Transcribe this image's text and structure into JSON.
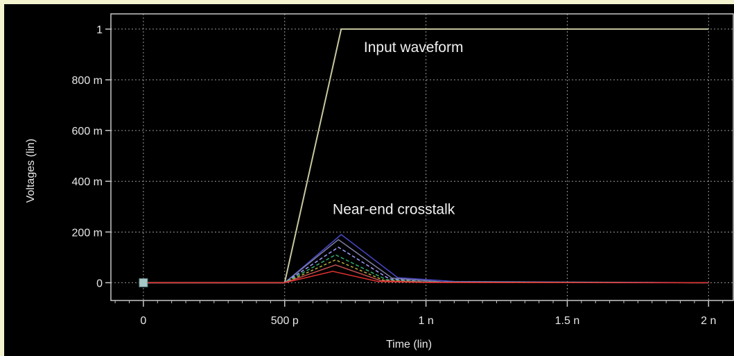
{
  "chart_data": {
    "type": "line",
    "xlabel": "Time (lin)",
    "ylabel": "Voltages (lin)",
    "x_ticks": [
      {
        "value": 0,
        "label": "0"
      },
      {
        "value": 5e-10,
        "label": "500 p"
      },
      {
        "value": 1e-09,
        "label": "1 n"
      },
      {
        "value": 1.5e-09,
        "label": "1.5 n"
      },
      {
        "value": 2e-09,
        "label": "2 n"
      }
    ],
    "y_ticks": [
      {
        "value": 0,
        "label": "0"
      },
      {
        "value": 0.2,
        "label": "200 m"
      },
      {
        "value": 0.4,
        "label": "400 m"
      },
      {
        "value": 0.6,
        "label": "600 m"
      },
      {
        "value": 0.8,
        "label": "800 m"
      },
      {
        "value": 1,
        "label": "1"
      }
    ],
    "xlim": [
      -1.15e-10,
      2.09e-09
    ],
    "ylim": [
      -0.07,
      1.06
    ],
    "grid": true,
    "series": [
      {
        "color": "#c8c8a0",
        "width": 2,
        "x": [
          0,
          5e-10,
          7e-10,
          2e-09
        ],
        "y": [
          0,
          0,
          1,
          1
        ]
      },
      {
        "color": "#4848c8",
        "x": [
          0,
          5e-10,
          7e-10,
          9e-10,
          1.1e-09,
          2e-09
        ],
        "y": [
          0,
          0,
          0.19,
          0.02,
          0.005,
          0
        ]
      },
      {
        "color": "#8080a8",
        "x": [
          0,
          5e-10,
          6.9e-10,
          8.8e-10,
          1.05e-09,
          2e-09
        ],
        "y": [
          0,
          0,
          0.17,
          0.018,
          0.004,
          0
        ]
      },
      {
        "color": "#a0a0ff",
        "dash": "5,3",
        "x": [
          0,
          5e-10,
          6.9e-10,
          8.7e-10,
          1e-09,
          2e-09
        ],
        "y": [
          0,
          0,
          0.14,
          0.015,
          0.003,
          0
        ]
      },
      {
        "color": "#30b070",
        "dash": "5,3",
        "x": [
          0,
          5e-10,
          6.8e-10,
          8.6e-10,
          1e-09,
          2e-09
        ],
        "y": [
          0,
          0,
          0.11,
          0.012,
          0.003,
          0
        ]
      },
      {
        "color": "#b8b040",
        "dash": "4,3",
        "x": [
          0,
          5e-10,
          6.8e-10,
          8.5e-10,
          1e-09,
          2e-09
        ],
        "y": [
          0,
          0,
          0.09,
          0.01,
          0.002,
          0
        ]
      },
      {
        "color": "#c85050",
        "x": [
          0,
          5e-10,
          6.8e-10,
          8.4e-10,
          1e-09,
          1.7e-09,
          2e-09
        ],
        "y": [
          0,
          0,
          0.07,
          0.008,
          0.002,
          0,
          0
        ]
      },
      {
        "color": "#e03030",
        "x": [
          0,
          5e-10,
          6.7e-10,
          8.3e-10,
          1e-09,
          2e-09
        ],
        "y": [
          0,
          0,
          0.045,
          0.005,
          0.001,
          0
        ]
      }
    ],
    "annotations": [
      {
        "text": "Input waveform",
        "x": 7.8e-10,
        "y": 0.91
      },
      {
        "text": "Near-end crosstalk",
        "x": 6.7e-10,
        "y": 0.27
      }
    ],
    "marker": {
      "x": 0,
      "y": 0,
      "color": "#a8c8c8"
    }
  }
}
